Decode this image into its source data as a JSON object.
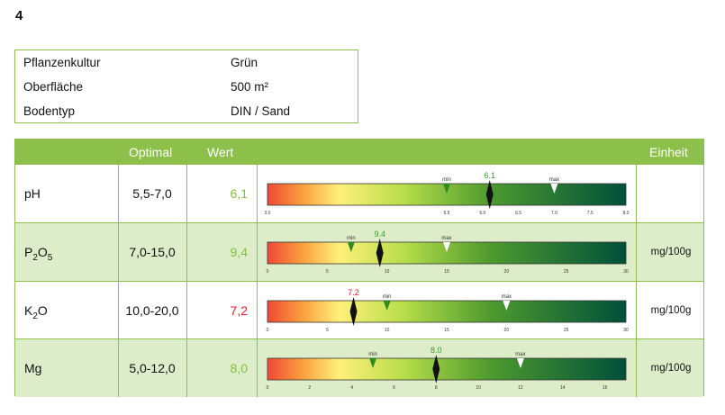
{
  "page_number": "4",
  "info": [
    {
      "label": "Pflanzenkultur",
      "value": "Grün"
    },
    {
      "label": "Oberfläche",
      "value": "500 m²"
    },
    {
      "label": "Bodentyp",
      "value": "DIN / Sand"
    }
  ],
  "table": {
    "headers": {
      "param": "",
      "optimal": "Optimal",
      "wert": "Wert",
      "einheit": "Einheit"
    },
    "min_label": "min",
    "max_label": "max",
    "rows": [
      {
        "param": "pH",
        "param_sub": "",
        "param_suffix": "",
        "param_sub2": "",
        "optimal": "5,5-7,0",
        "wert": "6,1",
        "wert_status": "ok",
        "einheit": "",
        "gauge": {
          "scale_min": 3.0,
          "scale_max": 8.0,
          "ticks": [
            "3.0",
            "5.5",
            "6.0",
            "6.5",
            "7.0",
            "7.5",
            "8.0"
          ],
          "tick_values": [
            3.0,
            5.5,
            6.0,
            6.5,
            7.0,
            7.5,
            8.0
          ],
          "min": 5.5,
          "max": 7.0,
          "value": 6.1,
          "value_label": "6.1",
          "value_color": "#3a9a28"
        }
      },
      {
        "param": "P",
        "param_sub": "2",
        "param_suffix": "O",
        "param_sub2": "5",
        "optimal": "7,0-15,0",
        "wert": "9,4",
        "wert_status": "ok",
        "einheit": "mg/100g",
        "gauge": {
          "scale_min": 0,
          "scale_max": 30,
          "ticks": [
            "0",
            "5",
            "10",
            "15",
            "20",
            "25",
            "30"
          ],
          "tick_values": [
            0,
            5,
            10,
            15,
            20,
            25,
            30
          ],
          "min": 7.0,
          "max": 15.0,
          "value": 9.4,
          "value_label": "9.4",
          "value_color": "#3a9a28"
        }
      },
      {
        "param": "K",
        "param_sub": "2",
        "param_suffix": "O",
        "param_sub2": "",
        "optimal": "10,0-20,0",
        "wert": "7,2",
        "wert_status": "low",
        "einheit": "mg/100g",
        "gauge": {
          "scale_min": 0,
          "scale_max": 30,
          "ticks": [
            "0",
            "5",
            "10",
            "15",
            "20",
            "25",
            "30"
          ],
          "tick_values": [
            0,
            5,
            10,
            15,
            20,
            25,
            30
          ],
          "min": 10.0,
          "max": 20.0,
          "value": 7.2,
          "value_label": "7.2",
          "value_color": "#e41e26"
        }
      },
      {
        "param": "Mg",
        "param_sub": "",
        "param_suffix": "",
        "param_sub2": "",
        "optimal": "5,0-12,0",
        "wert": "8,0",
        "wert_status": "ok",
        "einheit": "mg/100g",
        "gauge": {
          "scale_min": 0,
          "scale_max": 17,
          "ticks": [
            "0",
            "2",
            "4",
            "6",
            "8",
            "10",
            "12",
            "14",
            "16"
          ],
          "tick_values": [
            0,
            2,
            4,
            6,
            8,
            10,
            12,
            14,
            16
          ],
          "min": 5.0,
          "max": 12.0,
          "value": 8.0,
          "value_label": "8.0",
          "value_color": "#3a9a28"
        }
      }
    ]
  },
  "colors": {
    "accent": "#8cc04b",
    "row_alt": "#deedc9",
    "ok": "#7fbf3f",
    "low": "#e41e26"
  }
}
